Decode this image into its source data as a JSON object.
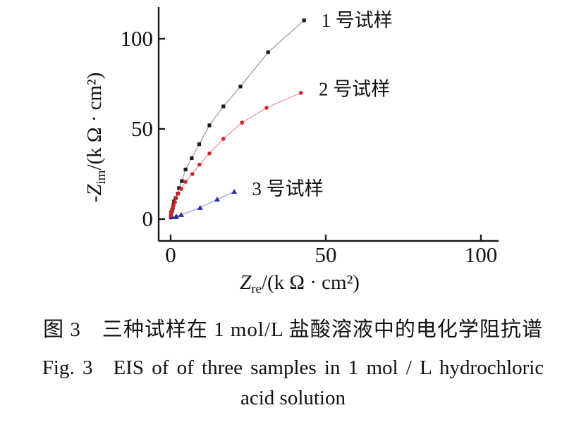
{
  "figure": {
    "caption_cn": "图 3　三种试样在 1 mol/L 盐酸溶液中的电化学阻抗谱",
    "caption_en_line1": "Fig. 3　EIS of of three samples in 1 mol / L hydrochloric",
    "caption_en_line2": "acid solution"
  },
  "chart_data": {
    "type": "scatter",
    "title": "",
    "xlabel": {
      "main": "Z",
      "sub": "re",
      "rest": "/(k Ω · cm²)"
    },
    "ylabel": {
      "main": "-Z",
      "sub": "im",
      "rest": "/(k Ω · cm²)"
    },
    "xlim": [
      0,
      105
    ],
    "ylim": [
      0,
      118
    ],
    "x_ticks": [
      0,
      50,
      100
    ],
    "y_ticks": [
      0,
      50,
      100
    ],
    "grid": false,
    "legend_position": "inline-right-of-last-point",
    "axis_color": "#1a1a1a",
    "series": [
      {
        "name": "1 号试样",
        "marker": "square",
        "marker_color": "#1a1a1a",
        "line_color": "#9e9e9e",
        "label_anchor": [
          45.8,
          110.2
        ],
        "points": [
          [
            0.1,
            1.5
          ],
          [
            0.15,
            2.6
          ],
          [
            0.2,
            3.9
          ],
          [
            0.5,
            5.1
          ],
          [
            0.7,
            6.3
          ],
          [
            0.9,
            7.8
          ],
          [
            1.1,
            9.8
          ],
          [
            1.6,
            11.7
          ],
          [
            2.3,
            14.1
          ],
          [
            2.7,
            17.2
          ],
          [
            3.6,
            21.1
          ],
          [
            4.8,
            27.5
          ],
          [
            6.8,
            33.8
          ],
          [
            9.2,
            41.5
          ],
          [
            12.5,
            52.0
          ],
          [
            17.0,
            62.5
          ],
          [
            22.5,
            73.5
          ],
          [
            31.4,
            92.5
          ],
          [
            43.0,
            110.2
          ]
        ]
      },
      {
        "name": "2 号试样",
        "marker": "circle",
        "marker_color": "#d42020",
        "line_color": "#e89898",
        "label_anchor": [
          45.0,
          72.0
        ],
        "points": [
          [
            0.05,
            0.8
          ],
          [
            0.1,
            1.5
          ],
          [
            0.15,
            2.2
          ],
          [
            0.2,
            3.1
          ],
          [
            0.35,
            3.7
          ],
          [
            0.5,
            4.3
          ],
          [
            0.7,
            5.9
          ],
          [
            0.9,
            7.4
          ],
          [
            1.4,
            9.4
          ],
          [
            1.8,
            11.7
          ],
          [
            2.5,
            14.1
          ],
          [
            3.4,
            16.8
          ],
          [
            4.8,
            20.7
          ],
          [
            7.0,
            25.0
          ],
          [
            9.3,
            30.2
          ],
          [
            12.5,
            36.4
          ],
          [
            17.0,
            44.5
          ],
          [
            23.0,
            53.5
          ],
          [
            30.9,
            61.7
          ],
          [
            42.0,
            70.0
          ]
        ]
      },
      {
        "name": "3 号试样",
        "marker": "triangle",
        "marker_color": "#2930a8",
        "line_color": "#9aa0d8",
        "label_anchor": [
          23.5,
          16.8
        ],
        "points": [
          [
            1.8,
            1.6
          ],
          [
            3.4,
            2.4
          ],
          [
            9.5,
            6.3
          ],
          [
            15.0,
            10.9
          ],
          [
            20.5,
            15.2
          ]
        ]
      }
    ],
    "origin_loop": {
      "series": "3 号试样",
      "cx": 1.0,
      "rx": 1.5,
      "peak": 1.4,
      "color": "#2930a8"
    }
  }
}
